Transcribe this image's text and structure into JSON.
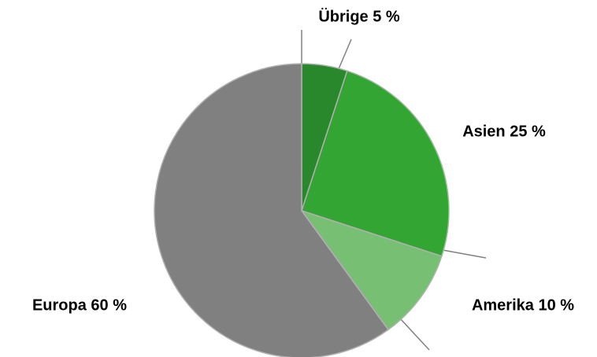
{
  "chart_data": {
    "type": "pie",
    "values": [
      5,
      25,
      10,
      60
    ],
    "value_labels": [
      "Übrige 5 %",
      "Asien 25 %",
      "Amerika 10 %",
      "Europa 60 %"
    ],
    "colors": [
      "#2a882c",
      "#33a532",
      "#77bf73",
      "#808080"
    ]
  }
}
